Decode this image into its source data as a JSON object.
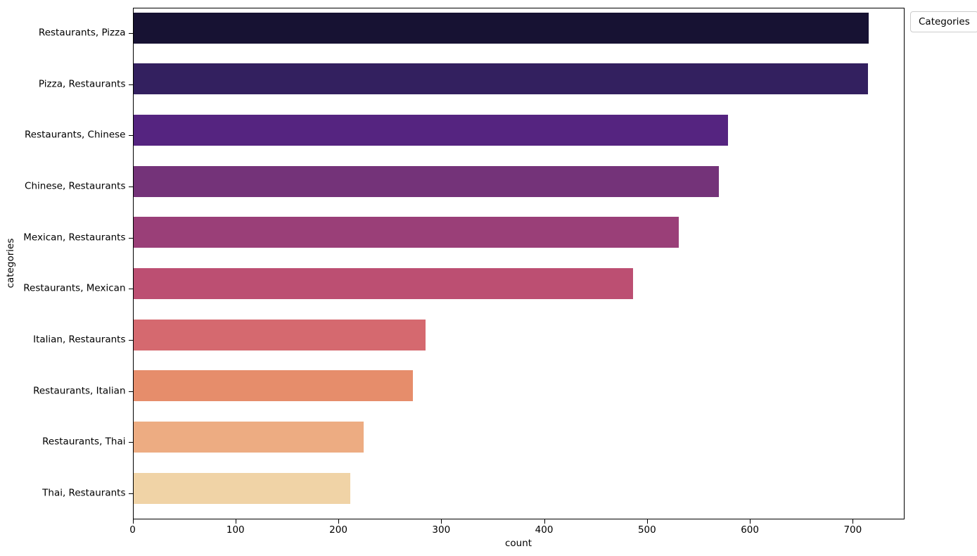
{
  "chart_data": {
    "type": "bar",
    "orientation": "horizontal",
    "title": "",
    "xlabel": "count",
    "ylabel": "categories",
    "categories": [
      "Restaurants, Pizza",
      "Pizza, Restaurants",
      "Restaurants, Chinese",
      "Chinese, Restaurants",
      "Mexican, Restaurants",
      "Restaurants, Mexican",
      "Italian, Restaurants",
      "Restaurants, Italian",
      "Restaurants, Thai",
      "Thai, Restaurants"
    ],
    "values": [
      715,
      714,
      578,
      569,
      530,
      486,
      284,
      272,
      224,
      211
    ],
    "bar_colors": [
      "#171233",
      "#33205f",
      "#552480",
      "#743379",
      "#9a3f78",
      "#bc4f72",
      "#d5696f",
      "#e68d6b",
      "#edac82",
      "#f0d3a6"
    ],
    "xlim": [
      0,
      750
    ],
    "xticks": [
      0,
      100,
      200,
      300,
      400,
      500,
      600,
      700
    ],
    "grid": false,
    "legend": {
      "title": "Categories",
      "position": "upper right"
    },
    "colors": {
      "spine": "#000000",
      "background": "#ffffff",
      "legend_border": "#cccccc",
      "text": "#000000"
    }
  }
}
